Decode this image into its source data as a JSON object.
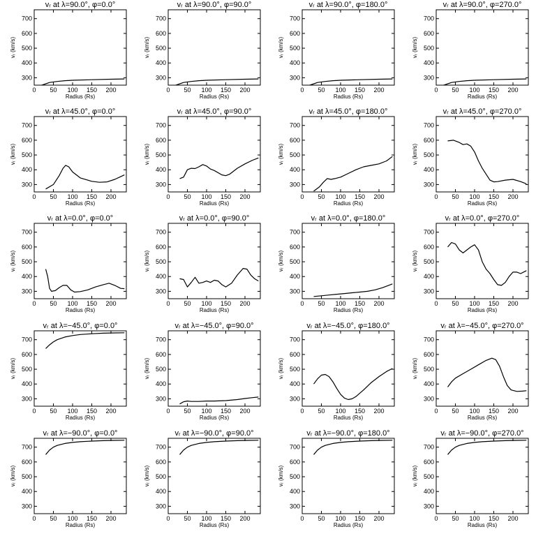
{
  "figure": {
    "background": "#ffffff",
    "line_color": "#000000"
  },
  "chart_data": [
    {
      "type": "line",
      "title": "vᵣ at λ=90.0°, φ=0.0°",
      "xlabel": "Radius (Rs)",
      "ylabel": "vᵣ (km/s)",
      "xlim": [
        0,
        240
      ],
      "ylim": [
        250,
        760
      ],
      "xticks": [
        0,
        50,
        100,
        150,
        200
      ],
      "yticks": [
        300,
        400,
        500,
        600,
        700
      ],
      "x": [
        20,
        40,
        60,
        80,
        100,
        150,
        200,
        235
      ],
      "y": [
        250,
        268,
        275,
        280,
        283,
        287,
        290,
        292
      ]
    },
    {
      "type": "line",
      "title": "vᵣ at λ=90.0°, φ=90.0°",
      "xlabel": "Radius (Rs)",
      "ylabel": "vᵣ (km/s)",
      "xlim": [
        0,
        240
      ],
      "ylim": [
        250,
        760
      ],
      "xticks": [
        0,
        50,
        100,
        150,
        200
      ],
      "yticks": [
        300,
        400,
        500,
        600,
        700
      ],
      "x": [
        20,
        40,
        60,
        80,
        100,
        150,
        200,
        235
      ],
      "y": [
        250,
        268,
        275,
        280,
        283,
        287,
        290,
        292
      ]
    },
    {
      "type": "line",
      "title": "vᵣ at λ=90.0°, φ=180.0°",
      "xlabel": "Radius (Rs)",
      "ylabel": "vᵣ (km/s)",
      "xlim": [
        0,
        240
      ],
      "ylim": [
        250,
        760
      ],
      "xticks": [
        0,
        50,
        100,
        150,
        200
      ],
      "yticks": [
        300,
        400,
        500,
        600,
        700
      ],
      "x": [
        20,
        40,
        60,
        80,
        100,
        150,
        200,
        235
      ],
      "y": [
        250,
        268,
        275,
        280,
        283,
        287,
        290,
        292
      ]
    },
    {
      "type": "line",
      "title": "vᵣ at λ=90.0°, φ=270.0°",
      "xlabel": "Radius (Rs)",
      "ylabel": "vᵣ (km/s)",
      "xlim": [
        0,
        240
      ],
      "ylim": [
        250,
        760
      ],
      "xticks": [
        0,
        50,
        100,
        150,
        200
      ],
      "yticks": [
        300,
        400,
        500,
        600,
        700
      ],
      "x": [
        20,
        40,
        60,
        80,
        100,
        150,
        200,
        235
      ],
      "y": [
        250,
        268,
        275,
        280,
        283,
        287,
        290,
        292
      ]
    },
    {
      "type": "line",
      "title": "vᵣ at λ=45.0°, φ=0.0°",
      "xlabel": "Radius (Rs)",
      "ylabel": "vᵣ (km/s)",
      "xlim": [
        0,
        240
      ],
      "ylim": [
        250,
        760
      ],
      "xticks": [
        0,
        50,
        100,
        150,
        200
      ],
      "yticks": [
        300,
        400,
        500,
        600,
        700
      ],
      "x": [
        30,
        50,
        65,
        75,
        82,
        90,
        100,
        120,
        150,
        170,
        190,
        210,
        235
      ],
      "y": [
        270,
        300,
        360,
        410,
        430,
        420,
        385,
        345,
        322,
        315,
        318,
        335,
        365
      ]
    },
    {
      "type": "line",
      "title": "vᵣ at λ=45.0°, φ=90.0°",
      "xlabel": "Radius (Rs)",
      "ylabel": "vᵣ (km/s)",
      "xlim": [
        0,
        240
      ],
      "ylim": [
        250,
        760
      ],
      "xticks": [
        0,
        50,
        100,
        150,
        200
      ],
      "yticks": [
        300,
        400,
        500,
        600,
        700
      ],
      "x": [
        30,
        40,
        50,
        60,
        70,
        80,
        90,
        100,
        110,
        120,
        140,
        150,
        160,
        180,
        200,
        220,
        235
      ],
      "y": [
        340,
        350,
        400,
        410,
        408,
        420,
        435,
        425,
        405,
        395,
        365,
        360,
        370,
        410,
        440,
        465,
        480
      ]
    },
    {
      "type": "line",
      "title": "vᵣ at λ=45.0°, φ=180.0°",
      "xlabel": "Radius (Rs)",
      "ylabel": "vᵣ (km/s)",
      "xlim": [
        0,
        240
      ],
      "ylim": [
        250,
        760
      ],
      "xticks": [
        0,
        50,
        100,
        150,
        200
      ],
      "yticks": [
        300,
        400,
        500,
        600,
        700
      ],
      "x": [
        30,
        45,
        55,
        65,
        75,
        85,
        100,
        120,
        140,
        160,
        180,
        200,
        220,
        235
      ],
      "y": [
        255,
        285,
        315,
        340,
        335,
        340,
        350,
        375,
        400,
        420,
        430,
        440,
        460,
        490
      ]
    },
    {
      "type": "line",
      "title": "vᵣ at λ=45.0°, φ=270.0°",
      "xlabel": "Radius (Rs)",
      "ylabel": "vᵣ (km/s)",
      "xlim": [
        0,
        240
      ],
      "ylim": [
        250,
        760
      ],
      "xticks": [
        0,
        50,
        100,
        150,
        200
      ],
      "yticks": [
        300,
        400,
        500,
        600,
        700
      ],
      "x": [
        30,
        45,
        60,
        70,
        80,
        90,
        100,
        110,
        120,
        130,
        140,
        150,
        160,
        180,
        200,
        220,
        235
      ],
      "y": [
        595,
        600,
        585,
        570,
        575,
        560,
        520,
        460,
        410,
        370,
        330,
        318,
        320,
        330,
        335,
        320,
        305
      ]
    },
    {
      "type": "line",
      "title": "vᵣ at λ=0.0°, φ=0.0°",
      "xlabel": "Radius (Rs)",
      "ylabel": "vᵣ (km/s)",
      "xlim": [
        0,
        240
      ],
      "ylim": [
        250,
        760
      ],
      "xticks": [
        0,
        50,
        100,
        150,
        200
      ],
      "yticks": [
        300,
        400,
        500,
        600,
        700
      ],
      "x": [
        30,
        35,
        40,
        45,
        55,
        65,
        75,
        85,
        95,
        105,
        120,
        140,
        160,
        180,
        195,
        210,
        225,
        235
      ],
      "y": [
        450,
        400,
        320,
        300,
        305,
        325,
        340,
        340,
        310,
        295,
        298,
        310,
        330,
        345,
        355,
        340,
        320,
        318
      ]
    },
    {
      "type": "line",
      "title": "vᵣ at λ=0.0°, φ=90.0°",
      "xlabel": "Radius (Rs)",
      "ylabel": "vᵣ (km/s)",
      "xlim": [
        0,
        240
      ],
      "ylim": [
        250,
        760
      ],
      "xticks": [
        0,
        50,
        100,
        150,
        200
      ],
      "yticks": [
        300,
        400,
        500,
        600,
        700
      ],
      "x": [
        30,
        40,
        50,
        60,
        70,
        80,
        90,
        100,
        110,
        120,
        130,
        140,
        150,
        165,
        180,
        195,
        205,
        215,
        225,
        235
      ],
      "y": [
        385,
        380,
        330,
        360,
        395,
        355,
        360,
        370,
        360,
        375,
        370,
        345,
        330,
        355,
        410,
        455,
        450,
        410,
        385,
        370
      ]
    },
    {
      "type": "line",
      "title": "vᵣ at λ=0.0°, φ=180.0°",
      "xlabel": "Radius (Rs)",
      "ylabel": "vᵣ (km/s)",
      "xlim": [
        0,
        240
      ],
      "ylim": [
        250,
        760
      ],
      "xticks": [
        0,
        50,
        100,
        150,
        200
      ],
      "yticks": [
        300,
        400,
        500,
        600,
        700
      ],
      "x": [
        30,
        50,
        70,
        90,
        110,
        130,
        150,
        170,
        190,
        210,
        235
      ],
      "y": [
        265,
        270,
        275,
        280,
        285,
        290,
        295,
        300,
        310,
        325,
        350
      ]
    },
    {
      "type": "line",
      "title": "vᵣ at λ=0.0°, φ=270.0°",
      "xlabel": "Radius (Rs)",
      "ylabel": "vᵣ (km/s)",
      "xlim": [
        0,
        240
      ],
      "ylim": [
        250,
        760
      ],
      "xticks": [
        0,
        50,
        100,
        150,
        200
      ],
      "yticks": [
        300,
        400,
        500,
        600,
        700
      ],
      "x": [
        30,
        40,
        50,
        60,
        70,
        80,
        90,
        100,
        110,
        120,
        130,
        140,
        150,
        160,
        170,
        180,
        190,
        200,
        210,
        220,
        235
      ],
      "y": [
        600,
        630,
        620,
        580,
        560,
        580,
        600,
        615,
        580,
        500,
        450,
        420,
        380,
        345,
        340,
        360,
        400,
        430,
        430,
        420,
        440
      ]
    },
    {
      "type": "line",
      "title": "vᵣ at λ=−45.0°, φ=0.0°",
      "xlabel": "Radius (Rs)",
      "ylabel": "vᵣ (km/s)",
      "xlim": [
        0,
        240
      ],
      "ylim": [
        250,
        760
      ],
      "xticks": [
        0,
        50,
        100,
        150,
        200
      ],
      "yticks": [
        300,
        400,
        500,
        600,
        700
      ],
      "x": [
        30,
        40,
        50,
        60,
        80,
        100,
        120,
        150,
        180,
        210,
        235
      ],
      "y": [
        640,
        665,
        685,
        700,
        718,
        728,
        735,
        740,
        744,
        746,
        747
      ]
    },
    {
      "type": "line",
      "title": "vᵣ at λ=−45.0°, φ=90.0°",
      "xlabel": "Radius (Rs)",
      "ylabel": "vᵣ (km/s)",
      "xlim": [
        0,
        240
      ],
      "ylim": [
        250,
        760
      ],
      "xticks": [
        0,
        50,
        100,
        150,
        200
      ],
      "yticks": [
        300,
        400,
        500,
        600,
        700
      ],
      "x": [
        30,
        40,
        50,
        60,
        80,
        100,
        120,
        150,
        180,
        200,
        220,
        235
      ],
      "y": [
        265,
        280,
        285,
        282,
        282,
        285,
        285,
        288,
        295,
        302,
        308,
        312
      ]
    },
    {
      "type": "line",
      "title": "vᵣ at λ=−45.0°, φ=180.0°",
      "xlabel": "Radius (Rs)",
      "ylabel": "vᵣ (km/s)",
      "xlim": [
        0,
        240
      ],
      "ylim": [
        250,
        760
      ],
      "xticks": [
        0,
        50,
        100,
        150,
        200
      ],
      "yticks": [
        300,
        400,
        500,
        600,
        700
      ],
      "x": [
        30,
        40,
        50,
        60,
        70,
        80,
        90,
        100,
        110,
        120,
        130,
        140,
        160,
        180,
        200,
        220,
        235
      ],
      "y": [
        400,
        435,
        460,
        465,
        450,
        415,
        370,
        330,
        305,
        295,
        300,
        315,
        360,
        410,
        450,
        485,
        505
      ]
    },
    {
      "type": "line",
      "title": "vᵣ at λ=−45.0°, φ=270.0°",
      "xlabel": "Radius (Rs)",
      "ylabel": "vᵣ (km/s)",
      "xlim": [
        0,
        240
      ],
      "ylim": [
        250,
        760
      ],
      "xticks": [
        0,
        50,
        100,
        150,
        200
      ],
      "yticks": [
        300,
        400,
        500,
        600,
        700
      ],
      "x": [
        30,
        40,
        50,
        70,
        90,
        110,
        130,
        145,
        155,
        165,
        175,
        185,
        195,
        210,
        225,
        235
      ],
      "y": [
        380,
        415,
        440,
        470,
        500,
        530,
        560,
        575,
        565,
        520,
        450,
        390,
        360,
        350,
        352,
        355
      ]
    },
    {
      "type": "line",
      "title": "vᵣ at λ=−90.0°, φ=0.0°",
      "xlabel": "Radius (Rs)",
      "ylabel": "vᵣ (km/s)",
      "xlim": [
        0,
        240
      ],
      "ylim": [
        250,
        760
      ],
      "xticks": [
        0,
        50,
        100,
        150,
        200
      ],
      "yticks": [
        300,
        400,
        500,
        600,
        700
      ],
      "x": [
        30,
        40,
        50,
        60,
        80,
        100,
        120,
        150,
        180,
        210,
        235
      ],
      "y": [
        650,
        680,
        700,
        712,
        725,
        732,
        737,
        741,
        744,
        746,
        747
      ]
    },
    {
      "type": "line",
      "title": "vᵣ at λ=−90.0°, φ=90.0°",
      "xlabel": "Radius (Rs)",
      "ylabel": "vᵣ (km/s)",
      "xlim": [
        0,
        240
      ],
      "ylim": [
        250,
        760
      ],
      "xticks": [
        0,
        50,
        100,
        150,
        200
      ],
      "yticks": [
        300,
        400,
        500,
        600,
        700
      ],
      "x": [
        30,
        40,
        50,
        60,
        80,
        100,
        120,
        150,
        180,
        210,
        235
      ],
      "y": [
        650,
        680,
        700,
        712,
        725,
        732,
        737,
        741,
        744,
        746,
        747
      ]
    },
    {
      "type": "line",
      "title": "vᵣ at λ=−90.0°, φ=180.0°",
      "xlabel": "Radius (Rs)",
      "ylabel": "vᵣ (km/s)",
      "xlim": [
        0,
        240
      ],
      "ylim": [
        250,
        760
      ],
      "xticks": [
        0,
        50,
        100,
        150,
        200
      ],
      "yticks": [
        300,
        400,
        500,
        600,
        700
      ],
      "x": [
        30,
        40,
        50,
        60,
        80,
        100,
        120,
        150,
        180,
        210,
        235
      ],
      "y": [
        650,
        680,
        700,
        712,
        725,
        732,
        737,
        741,
        744,
        746,
        747
      ]
    },
    {
      "type": "line",
      "title": "vᵣ at λ=−90.0°, φ=270.0°",
      "xlabel": "Radius (Rs)",
      "ylabel": "vᵣ (km/s)",
      "xlim": [
        0,
        240
      ],
      "ylim": [
        250,
        760
      ],
      "xticks": [
        0,
        50,
        100,
        150,
        200
      ],
      "yticks": [
        300,
        400,
        500,
        600,
        700
      ],
      "x": [
        30,
        40,
        50,
        60,
        80,
        100,
        120,
        150,
        180,
        210,
        235
      ],
      "y": [
        650,
        680,
        700,
        712,
        725,
        732,
        737,
        741,
        744,
        746,
        747
      ]
    }
  ]
}
